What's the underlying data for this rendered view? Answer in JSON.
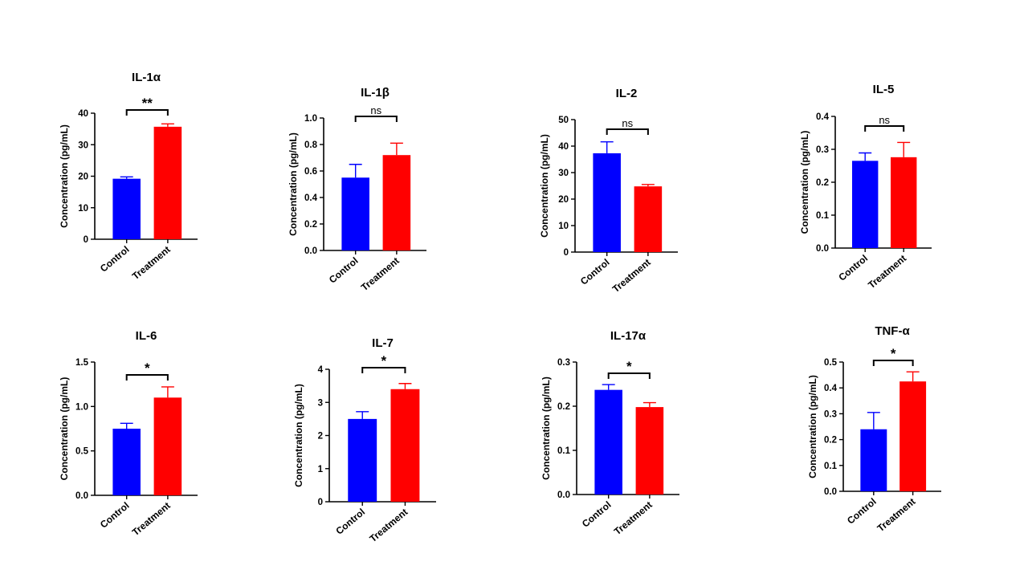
{
  "colors": {
    "control": "#0000ff",
    "treatment": "#ff0000",
    "axis": "#000000"
  },
  "chart_data": [
    {
      "type": "bar",
      "title": "IL-1α",
      "ylabel": "Concentration (pg/mL)",
      "categories": [
        "Control",
        "Treatment"
      ],
      "values": [
        19.2,
        35.7
      ],
      "errors": [
        0.6,
        0.9
      ],
      "ylim": [
        0,
        40
      ],
      "yticks": [
        "0",
        "10",
        "20",
        "30",
        "40"
      ],
      "significance": "**"
    },
    {
      "type": "bar",
      "title": "IL-1β",
      "ylabel": "Concentration (pg/mL)",
      "categories": [
        "Control",
        "Treatment"
      ],
      "values": [
        0.55,
        0.72
      ],
      "errors": [
        0.1,
        0.09
      ],
      "ylim": [
        0,
        1.0
      ],
      "yticks": [
        "0.0",
        "0.2",
        "0.4",
        "0.6",
        "0.8",
        "1.0"
      ],
      "significance": "ns"
    },
    {
      "type": "bar",
      "title": "IL-2",
      "ylabel": "Concentration (pg/mL)",
      "categories": [
        "Control",
        "Treatment"
      ],
      "values": [
        37.3,
        24.8
      ],
      "errors": [
        4.3,
        0.7
      ],
      "ylim": [
        0,
        50
      ],
      "yticks": [
        "0",
        "10",
        "20",
        "30",
        "40",
        "50"
      ],
      "significance": "ns"
    },
    {
      "type": "bar",
      "title": "IL-5",
      "ylabel": "Concentration (pg/mL)",
      "categories": [
        "Control",
        "Treatment"
      ],
      "values": [
        0.265,
        0.276
      ],
      "errors": [
        0.024,
        0.045
      ],
      "ylim": [
        0,
        0.4
      ],
      "yticks": [
        "0.0",
        "0.1",
        "0.2",
        "0.3",
        "0.4"
      ],
      "significance": "ns"
    },
    {
      "type": "bar",
      "title": "IL-6",
      "ylabel": "Concentration (pg/mL)",
      "categories": [
        "Control",
        "Treatment"
      ],
      "values": [
        0.75,
        1.1
      ],
      "errors": [
        0.06,
        0.12
      ],
      "ylim": [
        0,
        1.5
      ],
      "yticks": [
        "0.0",
        "0.5",
        "1.0",
        "1.5"
      ],
      "significance": "*"
    },
    {
      "type": "bar",
      "title": "IL-7",
      "ylabel": "Concentration (pg/mL)",
      "categories": [
        "Control",
        "Treatment"
      ],
      "values": [
        2.5,
        3.4
      ],
      "errors": [
        0.22,
        0.17
      ],
      "ylim": [
        0,
        4
      ],
      "yticks": [
        "0",
        "1",
        "2",
        "3",
        "4"
      ],
      "significance": "*"
    },
    {
      "type": "bar",
      "title": "IL-17α",
      "ylabel": "Concentration (pg/mL)",
      "categories": [
        "Control",
        "Treatment"
      ],
      "values": [
        0.237,
        0.198
      ],
      "errors": [
        0.012,
        0.01
      ],
      "ylim": [
        0,
        0.3
      ],
      "yticks": [
        "0.0",
        "0.1",
        "0.2",
        "0.3"
      ],
      "significance": "*"
    },
    {
      "type": "bar",
      "title": "TNF-α",
      "ylabel": "Concentration (pg/mL)",
      "categories": [
        "Control",
        "Treatment"
      ],
      "values": [
        0.24,
        0.425
      ],
      "errors": [
        0.065,
        0.037
      ],
      "ylim": [
        0,
        0.5
      ],
      "yticks": [
        "0.0",
        "0.1",
        "0.2",
        "0.3",
        "0.4",
        "0.5"
      ],
      "significance": "*"
    }
  ]
}
